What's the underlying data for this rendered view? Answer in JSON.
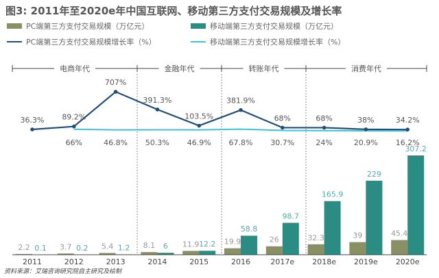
{
  "title": "图3: 2011年至2020e年中国互联网、移动第三方支付交易规模及增长率",
  "source": "资料来源：艾瑞咨询研究院自主研究及绘制",
  "colors": {
    "pc_bar": "#8b8f64",
    "mobile_bar": "#2a8c82",
    "pc_line": "#1f4e79",
    "mobile_line": "#3fc0d8"
  },
  "eras": [
    "电商年代",
    "金融年代",
    "转账年代",
    "消费年代"
  ],
  "chart_data": {
    "type": "bar+line",
    "title": "图3: 2011年至2020e年中国互联网、移动第三方支付交易规模及增长率",
    "categories": [
      "2011",
      "2012",
      "2013",
      "2014",
      "2015",
      "2016",
      "2017e",
      "2018e",
      "2019e",
      "2020e"
    ],
    "legend_placement": "top",
    "grid": false,
    "series": [
      {
        "name": "PC端第三方支付交易规模（万亿元）",
        "type": "bar",
        "values": [
          2.2,
          3.7,
          5.4,
          8.1,
          11.9,
          19.9,
          26,
          32.3,
          39,
          45.4
        ]
      },
      {
        "name": "移动端第三方支付交易规模（万亿元）",
        "type": "bar",
        "values": [
          0.1,
          0.2,
          1.2,
          6,
          12.2,
          58.8,
          98.7,
          165.9,
          229,
          307.2
        ]
      },
      {
        "name": "PC端第三方支付交易规模增长率（%）",
        "type": "line",
        "values": [
          36.3,
          89.2,
          707,
          391.3,
          103.5,
          381.9,
          68,
          68,
          38,
          34.2
        ],
        "labels": [
          "36.3%",
          "89.2%",
          "707%",
          "391.3%",
          "103.5%",
          "381.9%",
          "68%",
          "68%",
          "38%",
          "34.2%"
        ]
      },
      {
        "name": "移动端第三方支付交易规模增长率（%）",
        "type": "line",
        "values": [
          null,
          66,
          46.8,
          50.3,
          46.9,
          67.8,
          30.7,
          24,
          20.9,
          16.2
        ],
        "labels": [
          "",
          "66%",
          "46.8%",
          "50.3%",
          "46.9%",
          "67.8%",
          "30.7%",
          "24%",
          "20.9%",
          "16.2%"
        ]
      }
    ]
  }
}
